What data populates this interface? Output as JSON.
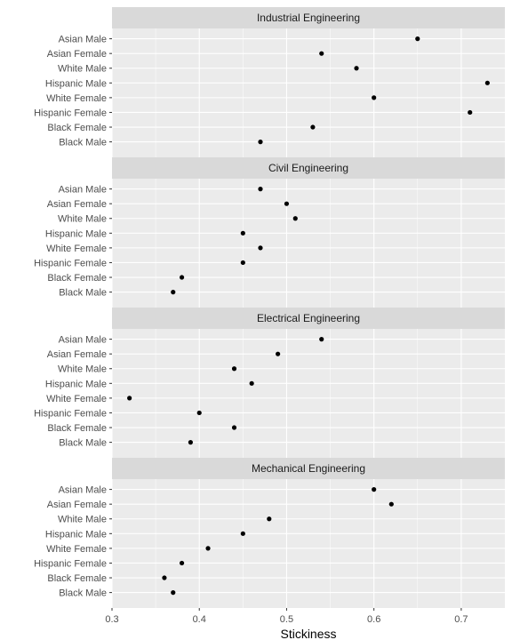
{
  "chart_data": {
    "type": "scatter",
    "facet_layout": "vertical",
    "xlabel": "Stickiness",
    "ylabel": "",
    "xlim": [
      0.3,
      0.75
    ],
    "x_ticks": [
      0.3,
      0.4,
      0.5,
      0.6,
      0.7
    ],
    "x_tick_labels": [
      "0.3",
      "0.4",
      "0.5",
      "0.6",
      "0.7"
    ],
    "categories": [
      "Asian Male",
      "Asian Female",
      "White Male",
      "Hispanic Male",
      "White Female",
      "Hispanic Female",
      "Black Female",
      "Black Male"
    ],
    "grid": true,
    "legend": "none",
    "colors": {
      "panel_bg": "#ebebeb",
      "strip_bg": "#d9d9d9",
      "grid": "#ffffff",
      "point": "#000000"
    },
    "panels": [
      {
        "title": "Industrial Engineering",
        "values": [
          0.65,
          0.54,
          0.58,
          0.73,
          0.6,
          0.71,
          0.53,
          0.47
        ]
      },
      {
        "title": "Civil Engineering",
        "values": [
          0.47,
          0.5,
          0.51,
          0.45,
          0.47,
          0.45,
          0.38,
          0.37
        ]
      },
      {
        "title": "Electrical Engineering",
        "values": [
          0.54,
          0.49,
          0.44,
          0.46,
          0.32,
          0.4,
          0.44,
          0.39
        ]
      },
      {
        "title": "Mechanical Engineering",
        "values": [
          0.6,
          0.62,
          0.48,
          0.45,
          0.41,
          0.38,
          0.36,
          0.37
        ]
      }
    ]
  }
}
